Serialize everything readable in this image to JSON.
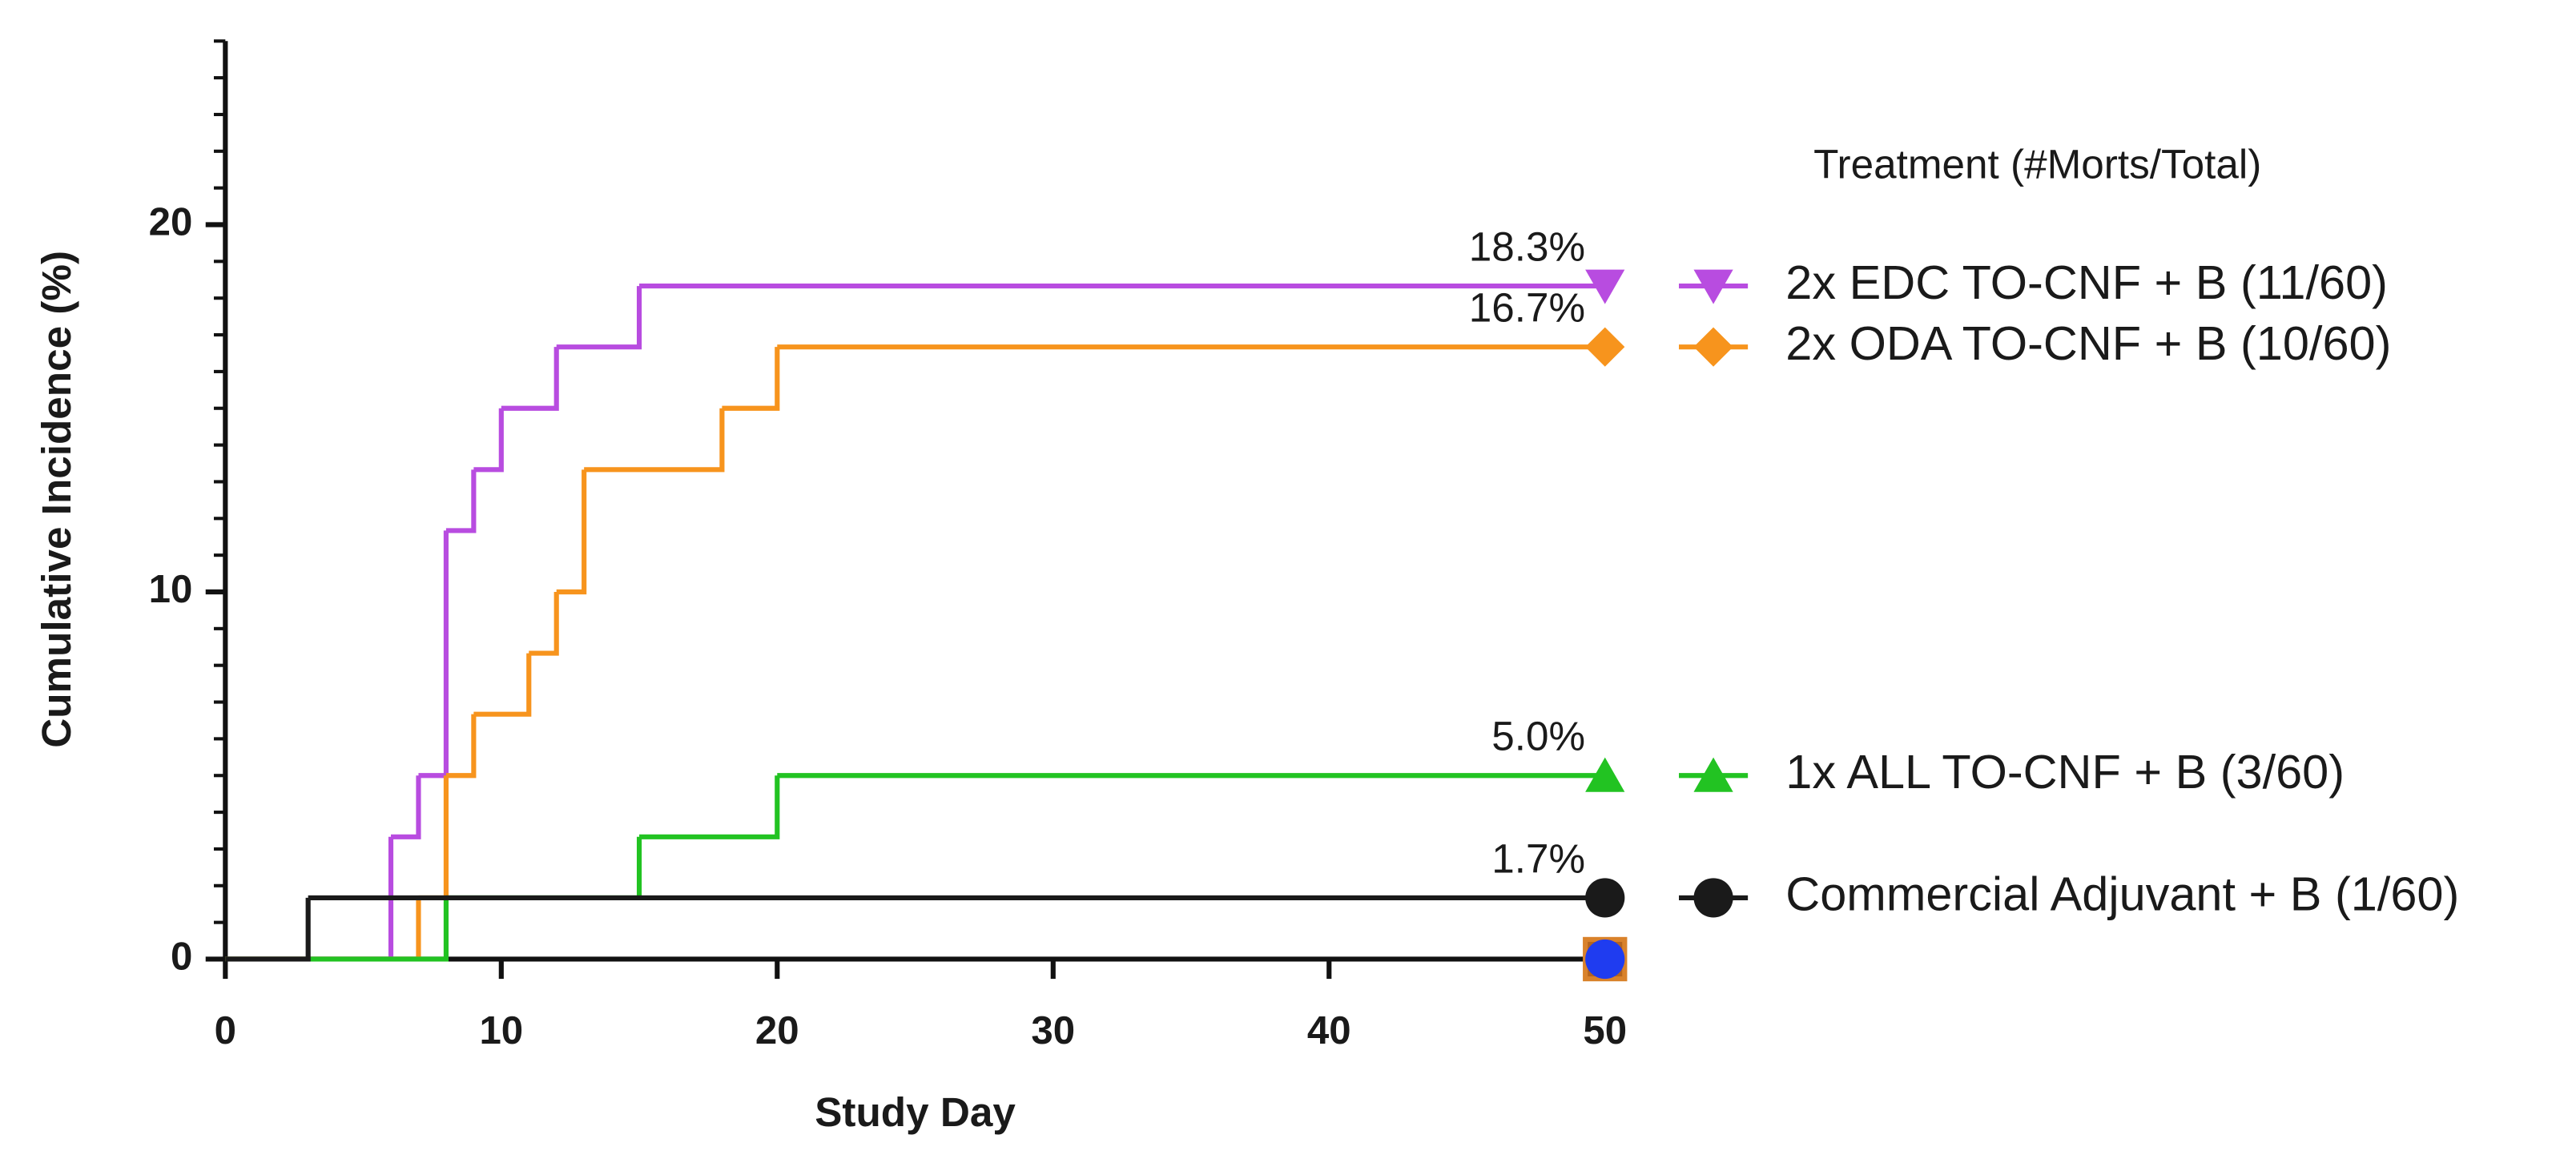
{
  "chart_data": {
    "type": "step",
    "x_label": "Study Day",
    "y_label": "Cumulative Incidence (%)",
    "legend_title": "Treatment (#Morts/Total)",
    "xlim": [
      0,
      50
    ],
    "ylim": [
      0,
      25
    ],
    "xticks": [
      0,
      10,
      20,
      30,
      40,
      50
    ],
    "yticks": [
      0,
      10,
      20
    ],
    "yminorticks": [
      1,
      2,
      3,
      4,
      5,
      6,
      7,
      8,
      9,
      11,
      12,
      13,
      14,
      15,
      16,
      17,
      18,
      19,
      21,
      22,
      23,
      24,
      25
    ],
    "series": [
      {
        "name": "2x EDC TO-CNF + B (11/60)",
        "color": "#b84ce0",
        "marker": "triangle-down",
        "end_label": "18.3%",
        "x": [
          0,
          6,
          7,
          8,
          9,
          10,
          12,
          15,
          50
        ],
        "values": [
          0,
          3.33,
          5,
          11.67,
          13.33,
          15,
          16.67,
          18.33,
          18.33
        ]
      },
      {
        "name": "2x ODA TO-CNF + B (10/60)",
        "color": "#f7941d",
        "marker": "diamond",
        "end_label": "16.7%",
        "x": [
          0,
          7,
          8,
          9,
          11,
          12,
          13,
          18,
          20,
          50
        ],
        "values": [
          0,
          1.67,
          5,
          6.67,
          8.33,
          10,
          13.33,
          15,
          16.67,
          16.67
        ]
      },
      {
        "name": "1x ALL TO-CNF + B (3/60)",
        "color": "#22c322",
        "marker": "triangle-up",
        "end_label": "5.0%",
        "x": [
          0,
          8,
          15,
          20,
          50
        ],
        "values": [
          0,
          1.67,
          3.33,
          5,
          5
        ]
      },
      {
        "name": "Commercial Adjuvant + B (1/60)",
        "color": "#1a1a1a",
        "marker": "circle",
        "end_label": "1.7%",
        "x": [
          0,
          3,
          50
        ],
        "values": [
          0,
          1.67,
          1.67
        ]
      },
      {
        "color": "#b5651d",
        "marker": "square",
        "x": [
          50
        ],
        "values": [
          0
        ]
      },
      {
        "color": "#1f3cf0",
        "marker": "circle",
        "x": [
          50
        ],
        "values": [
          0
        ]
      }
    ]
  }
}
